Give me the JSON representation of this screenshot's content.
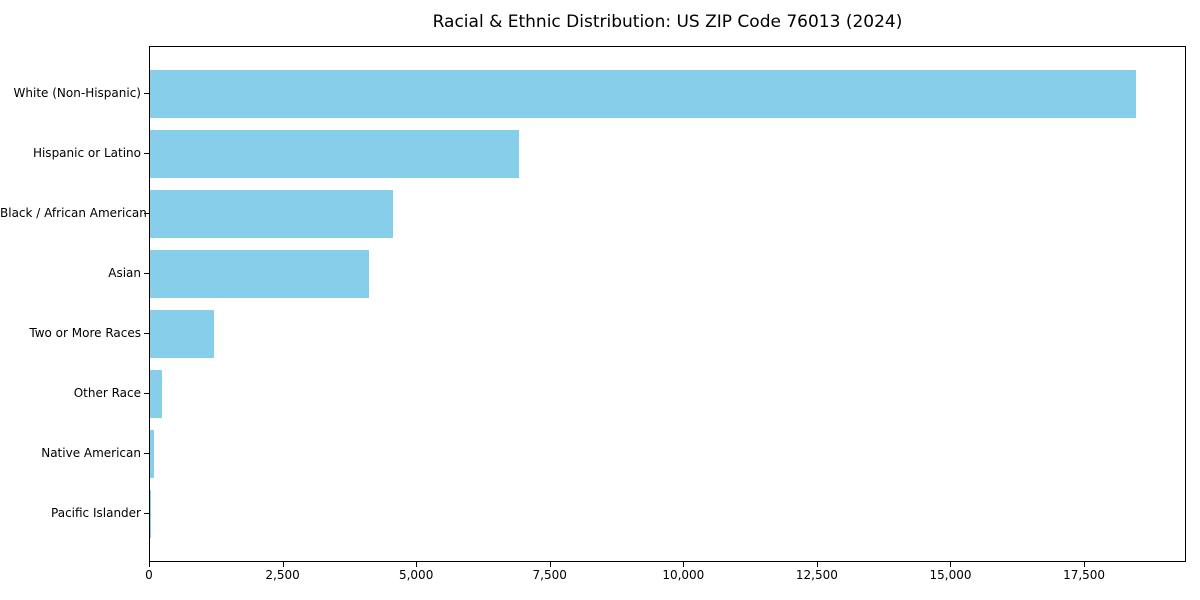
{
  "chart_data": {
    "type": "bar",
    "orientation": "horizontal",
    "title": "Racial & Ethnic Distribution: US ZIP Code 76013 (2024)",
    "categories": [
      "White (Non-Hispanic)",
      "Hispanic or Latino",
      "Black / African American",
      "Asian",
      "Two or More Races",
      "Other Race",
      "Native American",
      "Pacific Islander"
    ],
    "values": [
      18450,
      6900,
      4550,
      4100,
      1200,
      230,
      75,
      10
    ],
    "xlabel": "",
    "ylabel": "",
    "xlim": [
      0,
      19370
    ],
    "x_ticks": [
      0,
      2500,
      5000,
      7500,
      10000,
      12500,
      15000,
      17500
    ],
    "x_tick_labels": [
      "0",
      "2,500",
      "5,000",
      "7,500",
      "10,000",
      "12,500",
      "15,000",
      "17,500"
    ],
    "bar_color": "#87CEEB",
    "axis_color": "#000000",
    "grid": false,
    "legend": null
  }
}
